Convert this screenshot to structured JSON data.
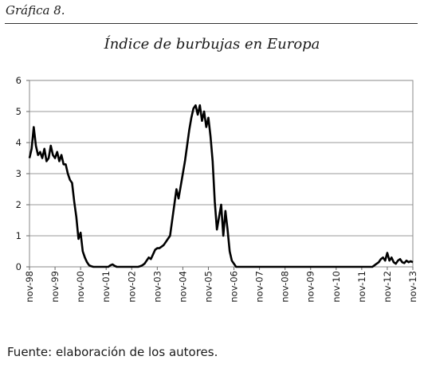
{
  "figure_label": "Gráfica 8.",
  "source_note": "Fuente: elaboración de los autores.",
  "chart_data": {
    "type": "line",
    "title": "Índice de burbujas en Europa",
    "xlabel": "",
    "ylabel": "",
    "ylim": [
      0,
      6
    ],
    "yticks": [
      0,
      1,
      2,
      3,
      4,
      5,
      6
    ],
    "x_tick_labels": [
      "nov-98",
      "nov-99",
      "nov-00",
      "nov-01",
      "nov-02",
      "nov-03",
      "nov-04",
      "nov-05",
      "nov-06",
      "nov-07",
      "nov-08",
      "nov-09",
      "nov-10",
      "nov-11",
      "nov-12",
      "nov-13"
    ],
    "grid": true,
    "legend": "none",
    "line_color": "#000000",
    "series": [
      {
        "x": [
          "nov-98",
          "dic-98",
          "ene-99",
          "feb-99",
          "mar-99",
          "abr-99",
          "may-99",
          "jun-99",
          "jul-99",
          "ago-99",
          "sep-99",
          "oct-99",
          "nov-99",
          "dic-99",
          "ene-00",
          "feb-00",
          "mar-00",
          "abr-00",
          "may-00",
          "jun-00",
          "jul-00",
          "ago-00",
          "sep-00",
          "oct-00",
          "nov-00",
          "dic-00",
          "ene-01",
          "feb-01",
          "mar-01",
          "abr-01",
          "may-01",
          "jun-01",
          "jul-01",
          "ago-01",
          "sep-01",
          "oct-01",
          "nov-01",
          "dic-01",
          "ene-02",
          "feb-02",
          "mar-02",
          "abr-02",
          "may-02",
          "jun-02",
          "jul-02",
          "ago-02",
          "sep-02",
          "oct-02",
          "nov-02",
          "dic-02",
          "ene-03",
          "feb-03",
          "mar-03",
          "abr-03",
          "may-03",
          "jun-03",
          "jul-03",
          "ago-03",
          "sep-03",
          "oct-03",
          "nov-03",
          "dic-03",
          "ene-04",
          "feb-04",
          "mar-04",
          "abr-04",
          "may-04",
          "jun-04",
          "jul-04",
          "ago-04",
          "sep-04",
          "oct-04",
          "nov-04",
          "dic-04",
          "ene-05",
          "feb-05",
          "mar-05",
          "abr-05",
          "may-05",
          "jun-05",
          "jul-05",
          "ago-05",
          "sep-05",
          "oct-05",
          "nov-05",
          "dic-05",
          "ene-06",
          "feb-06",
          "mar-06",
          "abr-06",
          "may-06",
          "jun-06",
          "jul-06",
          "ago-06",
          "sep-06",
          "oct-06",
          "nov-06",
          "dic-06",
          "ene-07",
          "feb-07",
          "mar-07",
          "abr-07",
          "may-07",
          "jun-07",
          "jul-07",
          "ago-07",
          "sep-07",
          "oct-07",
          "nov-07",
          "dic-07",
          "ene-08",
          "feb-08",
          "mar-08",
          "abr-08",
          "may-08",
          "jun-08",
          "jul-08",
          "ago-08",
          "sep-08",
          "oct-08",
          "nov-08",
          "dic-08",
          "ene-09",
          "feb-09",
          "mar-09",
          "abr-09",
          "may-09",
          "jun-09",
          "jul-09",
          "ago-09",
          "sep-09",
          "oct-09",
          "nov-09",
          "dic-09",
          "ene-10",
          "feb-10",
          "mar-10",
          "abr-10",
          "may-10",
          "jun-10",
          "jul-10",
          "ago-10",
          "sep-10",
          "oct-10",
          "nov-10",
          "dic-10",
          "ene-11",
          "feb-11",
          "mar-11",
          "abr-11",
          "may-11",
          "jun-11",
          "jul-11",
          "ago-11",
          "sep-11",
          "oct-11",
          "nov-11",
          "dic-11",
          "ene-12",
          "feb-12",
          "mar-12",
          "abr-12",
          "may-12",
          "jun-12",
          "jul-12",
          "ago-12",
          "sep-12",
          "oct-12",
          "nov-12",
          "dic-12",
          "ene-13",
          "feb-13",
          "mar-13",
          "abr-13",
          "may-13",
          "jun-13",
          "jul-13",
          "ago-13",
          "sep-13",
          "oct-13",
          "nov-13"
        ],
        "values": [
          3.5,
          3.8,
          4.5,
          3.9,
          3.6,
          3.7,
          3.5,
          3.8,
          3.4,
          3.5,
          3.9,
          3.6,
          3.5,
          3.7,
          3.4,
          3.6,
          3.3,
          3.3,
          3.0,
          2.8,
          2.7,
          2.1,
          1.6,
          0.9,
          1.1,
          0.5,
          0.3,
          0.15,
          0.05,
          0.02,
          0.0,
          0.0,
          0.0,
          0.0,
          0.0,
          0.0,
          0.0,
          0.0,
          0.05,
          0.08,
          0.03,
          0.0,
          0.0,
          0.0,
          0.0,
          0.0,
          0.0,
          0.0,
          0.0,
          0.0,
          0.0,
          0.0,
          0.02,
          0.05,
          0.1,
          0.2,
          0.3,
          0.25,
          0.4,
          0.55,
          0.6,
          0.6,
          0.65,
          0.7,
          0.8,
          0.9,
          1.0,
          1.5,
          2.0,
          2.5,
          2.2,
          2.6,
          3.0,
          3.4,
          3.9,
          4.4,
          4.8,
          5.1,
          5.2,
          4.9,
          5.2,
          4.7,
          5.0,
          4.5,
          4.8,
          4.2,
          3.4,
          2.1,
          1.2,
          1.6,
          2.0,
          1.0,
          1.8,
          1.2,
          0.5,
          0.2,
          0.1,
          0.0,
          0.0,
          0.0,
          0.0,
          0.0,
          0.0,
          0.0,
          0.0,
          0.0,
          0.0,
          0.0,
          0.0,
          0.0,
          0.0,
          0.0,
          0.0,
          0.0,
          0.0,
          0.0,
          0.0,
          0.0,
          0.0,
          0.0,
          0.0,
          0.0,
          0.0,
          0.0,
          0.0,
          0.0,
          0.0,
          0.0,
          0.0,
          0.0,
          0.0,
          0.0,
          0.0,
          0.0,
          0.0,
          0.0,
          0.0,
          0.0,
          0.0,
          0.0,
          0.0,
          0.0,
          0.0,
          0.0,
          0.0,
          0.0,
          0.0,
          0.0,
          0.0,
          0.0,
          0.0,
          0.0,
          0.0,
          0.0,
          0.0,
          0.0,
          0.0,
          0.0,
          0.0,
          0.0,
          0.0,
          0.0,
          0.05,
          0.1,
          0.15,
          0.25,
          0.3,
          0.2,
          0.45,
          0.2,
          0.3,
          0.15,
          0.1,
          0.2,
          0.25,
          0.15,
          0.12,
          0.2,
          0.15,
          0.18,
          0.15
        ]
      }
    ]
  }
}
